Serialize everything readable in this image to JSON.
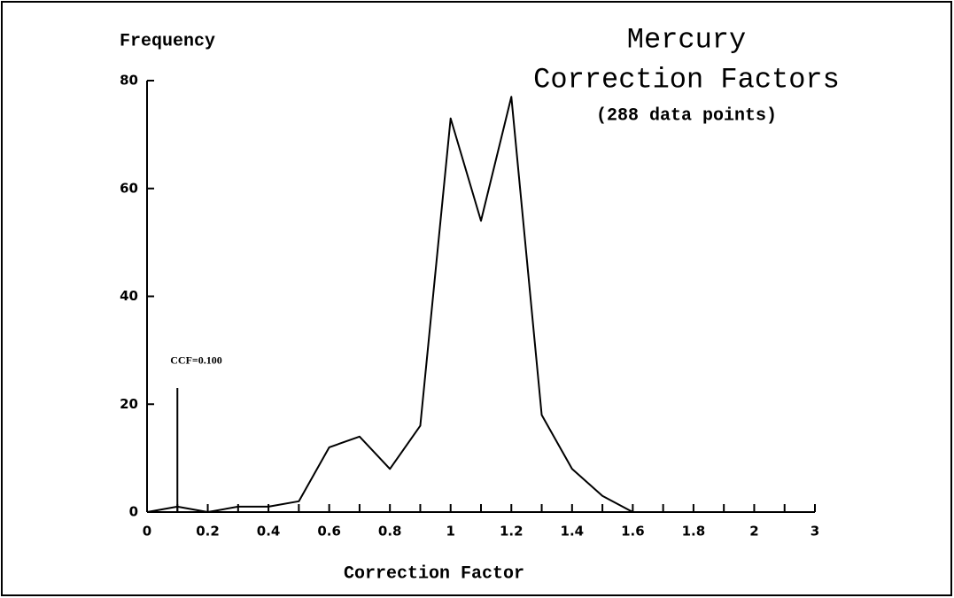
{
  "chart_data": {
    "type": "line",
    "title": [
      "Mercury",
      "Correction Factors"
    ],
    "subtitle": "(288 data points)",
    "y_label": "Frequency",
    "x_label": "Correction Factor",
    "x": [
      0,
      0.1,
      0.2,
      0.3,
      0.4,
      0.5,
      0.6,
      0.7,
      0.8,
      0.9,
      1.0,
      1.1,
      1.2,
      1.3,
      1.4,
      1.5,
      1.6
    ],
    "series": [
      {
        "color": "#000000",
        "values": [
          0,
          1,
          0,
          1,
          1,
          2,
          12,
          14,
          8,
          16,
          73,
          54,
          77,
          18,
          8,
          3,
          0
        ]
      }
    ],
    "annotation": {
      "text": "CCF=0.100",
      "x": 0.1,
      "y": 23
    },
    "xlim": [
      0,
      3
    ],
    "xticks": [
      0,
      0.2,
      0.4,
      0.6,
      0.8,
      1,
      1.2,
      1.4,
      1.6,
      1.8,
      2,
      3
    ],
    "ylim": [
      0,
      80
    ],
    "yticks": [
      0,
      20,
      40,
      60,
      80
    ]
  }
}
